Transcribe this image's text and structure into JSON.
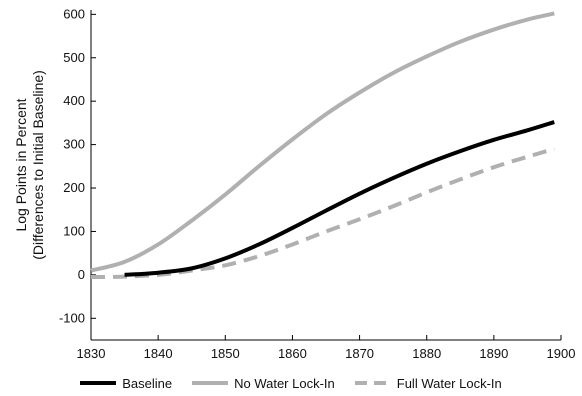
{
  "chart_data": {
    "type": "line",
    "title": "",
    "xlabel": "",
    "ylabel_lines": [
      "Log Points in Percent",
      "(Differences to Initial Baseline)"
    ],
    "xlim": [
      1830,
      1900
    ],
    "ylim": [
      -150,
      610
    ],
    "xticks": [
      1830,
      1840,
      1850,
      1860,
      1870,
      1880,
      1890,
      1900
    ],
    "yticks": [
      -100,
      0,
      100,
      200,
      300,
      400,
      500,
      600
    ],
    "grid": false,
    "legend_position": "bottom",
    "x": [
      1830,
      1835,
      1840,
      1845,
      1850,
      1855,
      1860,
      1865,
      1870,
      1875,
      1880,
      1885,
      1890,
      1895,
      1899
    ],
    "series": [
      {
        "name": "Baseline",
        "color": "#000000",
        "style": "solid",
        "values": [
          null,
          0,
          5,
          15,
          38,
          70,
          108,
          148,
          187,
          223,
          256,
          285,
          311,
          333,
          352
        ]
      },
      {
        "name": "No Water Lock-In",
        "color": "#b0b0b0",
        "style": "solid",
        "values": [
          10,
          30,
          70,
          125,
          185,
          250,
          312,
          370,
          420,
          465,
          503,
          537,
          565,
          588,
          602
        ]
      },
      {
        "name": "Full Water Lock-In",
        "color": "#b0b0b0",
        "style": "dashed",
        "values": [
          -5,
          -4,
          0,
          10,
          22,
          43,
          70,
          100,
          128,
          158,
          190,
          220,
          248,
          272,
          290
        ]
      }
    ]
  }
}
